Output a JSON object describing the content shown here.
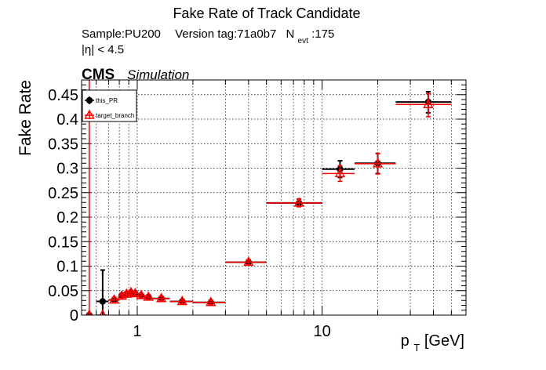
{
  "chart_data": {
    "type": "scatter",
    "title": "Fake Rate of Track Candidate",
    "header": {
      "sample": "Sample:PU200",
      "version": "Version tag:71a0b7",
      "nevt_symbol": "N",
      "nevt_sub": "evt",
      "nevt_value": ":175",
      "eta_cut": "|η| < 4.5"
    },
    "cms_label": "CMS",
    "cms_sublabel": "Simulation",
    "ylabel": "Fake Rate",
    "xlabel": {
      "main": "p",
      "sub": "T",
      "unit": " [GeV]"
    },
    "xscale": "log",
    "xlim": [
      0.5,
      60
    ],
    "ylim": [
      0,
      0.48
    ],
    "grid": true,
    "legend_position": "top-left",
    "x_ticklabels": [
      {
        "value": 1,
        "label": "1"
      },
      {
        "value": 10,
        "label": "10"
      }
    ],
    "y_ticklabels": [
      {
        "value": 0,
        "label": "0"
      },
      {
        "value": 0.05,
        "label": "0.05"
      },
      {
        "value": 0.1,
        "label": "0.1"
      },
      {
        "value": 0.15,
        "label": "0.15"
      },
      {
        "value": 0.2,
        "label": "0.2"
      },
      {
        "value": 0.25,
        "label": "0.25"
      },
      {
        "value": 0.3,
        "label": "0.3"
      },
      {
        "value": 0.35,
        "label": "0.35"
      },
      {
        "value": 0.4,
        "label": "0.4"
      },
      {
        "value": 0.45,
        "label": "0.45"
      }
    ],
    "series": [
      {
        "name": "this_PR",
        "color": "#000000",
        "marker": "filled-circle",
        "points": [
          {
            "x": 0.55,
            "xlo": 0.53,
            "xhi": 0.57,
            "y": 0.0,
            "ylo": 0.0,
            "yhi": 0.0
          },
          {
            "x": 0.65,
            "xlo": 0.6,
            "xhi": 0.7,
            "y": 0.028,
            "ylo": 0.0,
            "yhi": 0.092
          },
          {
            "x": 0.75,
            "xlo": 0.7,
            "xhi": 0.8,
            "y": 0.031,
            "ylo": 0.026,
            "yhi": 0.036
          },
          {
            "x": 0.825,
            "xlo": 0.8,
            "xhi": 0.85,
            "y": 0.04,
            "ylo": 0.036,
            "yhi": 0.044
          },
          {
            "x": 0.875,
            "xlo": 0.85,
            "xhi": 0.9,
            "y": 0.043,
            "ylo": 0.039,
            "yhi": 0.047
          },
          {
            "x": 0.925,
            "xlo": 0.9,
            "xhi": 0.95,
            "y": 0.046,
            "ylo": 0.042,
            "yhi": 0.05
          },
          {
            "x": 0.975,
            "xlo": 0.95,
            "xhi": 1.0,
            "y": 0.044,
            "ylo": 0.04,
            "yhi": 0.048
          },
          {
            "x": 1.05,
            "xlo": 1.0,
            "xhi": 1.1,
            "y": 0.04,
            "ylo": 0.036,
            "yhi": 0.044
          },
          {
            "x": 1.15,
            "xlo": 1.1,
            "xhi": 1.2,
            "y": 0.037,
            "ylo": 0.033,
            "yhi": 0.041
          },
          {
            "x": 1.35,
            "xlo": 1.2,
            "xhi": 1.5,
            "y": 0.034,
            "ylo": 0.03,
            "yhi": 0.038
          },
          {
            "x": 1.75,
            "xlo": 1.5,
            "xhi": 2.0,
            "y": 0.028,
            "ylo": 0.024,
            "yhi": 0.032
          },
          {
            "x": 2.5,
            "xlo": 2.0,
            "xhi": 3.0,
            "y": 0.026,
            "ylo": 0.022,
            "yhi": 0.03
          },
          {
            "x": 4.0,
            "xlo": 3.0,
            "xhi": 5.0,
            "y": 0.108,
            "ylo": 0.103,
            "yhi": 0.113
          },
          {
            "x": 7.5,
            "xlo": 5.0,
            "xhi": 10.0,
            "y": 0.229,
            "ylo": 0.222,
            "yhi": 0.237
          },
          {
            "x": 12.5,
            "xlo": 10.0,
            "xhi": 15.0,
            "y": 0.298,
            "ylo": 0.281,
            "yhi": 0.315
          },
          {
            "x": 20.0,
            "xlo": 15.0,
            "xhi": 25.0,
            "y": 0.31,
            "ylo": 0.289,
            "yhi": 0.33
          },
          {
            "x": 37.5,
            "xlo": 25.0,
            "xhi": 50.0,
            "y": 0.435,
            "ylo": 0.413,
            "yhi": 0.456
          }
        ]
      },
      {
        "name": "target_branch",
        "color": "#ff0000",
        "marker": "open-triangle",
        "points": [
          {
            "x": 0.55,
            "xlo": 0.53,
            "xhi": 0.57,
            "y": 0.0,
            "ylo": 0.0,
            "yhi": 0.48
          },
          {
            "x": 0.65,
            "xlo": 0.6,
            "xhi": 0.7,
            "y": 0.0,
            "ylo": 0.0,
            "yhi": 0.0
          },
          {
            "x": 0.75,
            "xlo": 0.7,
            "xhi": 0.8,
            "y": 0.031,
            "ylo": 0.026,
            "yhi": 0.036
          },
          {
            "x": 0.825,
            "xlo": 0.8,
            "xhi": 0.85,
            "y": 0.039,
            "ylo": 0.035,
            "yhi": 0.043
          },
          {
            "x": 0.875,
            "xlo": 0.85,
            "xhi": 0.9,
            "y": 0.043,
            "ylo": 0.039,
            "yhi": 0.047
          },
          {
            "x": 0.925,
            "xlo": 0.9,
            "xhi": 0.95,
            "y": 0.046,
            "ylo": 0.042,
            "yhi": 0.05
          },
          {
            "x": 0.975,
            "xlo": 0.95,
            "xhi": 1.0,
            "y": 0.044,
            "ylo": 0.04,
            "yhi": 0.048
          },
          {
            "x": 1.05,
            "xlo": 1.0,
            "xhi": 1.1,
            "y": 0.04,
            "ylo": 0.036,
            "yhi": 0.044
          },
          {
            "x": 1.15,
            "xlo": 1.1,
            "xhi": 1.2,
            "y": 0.037,
            "ylo": 0.033,
            "yhi": 0.041
          },
          {
            "x": 1.35,
            "xlo": 1.2,
            "xhi": 1.5,
            "y": 0.034,
            "ylo": 0.03,
            "yhi": 0.038
          },
          {
            "x": 1.75,
            "xlo": 1.5,
            "xhi": 2.0,
            "y": 0.028,
            "ylo": 0.024,
            "yhi": 0.032
          },
          {
            "x": 2.5,
            "xlo": 2.0,
            "xhi": 3.0,
            "y": 0.026,
            "ylo": 0.022,
            "yhi": 0.03
          },
          {
            "x": 4.0,
            "xlo": 3.0,
            "xhi": 5.0,
            "y": 0.108,
            "ylo": 0.103,
            "yhi": 0.113
          },
          {
            "x": 7.5,
            "xlo": 5.0,
            "xhi": 10.0,
            "y": 0.229,
            "ylo": 0.221,
            "yhi": 0.237
          },
          {
            "x": 12.5,
            "xlo": 10.0,
            "xhi": 15.0,
            "y": 0.289,
            "ylo": 0.273,
            "yhi": 0.305
          },
          {
            "x": 20.0,
            "xlo": 15.0,
            "xhi": 25.0,
            "y": 0.309,
            "ylo": 0.288,
            "yhi": 0.33
          },
          {
            "x": 37.5,
            "xlo": 25.0,
            "xhi": 50.0,
            "y": 0.43,
            "ylo": 0.405,
            "yhi": 0.452
          }
        ]
      }
    ]
  }
}
